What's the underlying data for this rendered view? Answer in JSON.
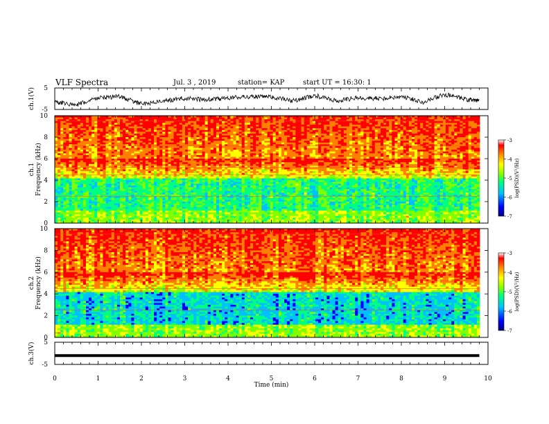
{
  "header": {
    "title": "VLF Spectra",
    "date": "Jul. 3 , 2019",
    "station": "station= KAP",
    "start_time": "start UT = 16:30: 1"
  },
  "chart_data": [
    {
      "type": "line",
      "panel": "ch.1 waveform",
      "ylabel": "ch.1(V)",
      "ylim": [
        -5,
        5
      ],
      "y_ticks": [
        "5",
        "-5"
      ],
      "x": [
        0,
        0.5,
        1,
        1.5,
        2,
        2.5,
        3,
        3.5,
        4,
        4.5,
        5,
        5.5,
        6,
        6.5,
        7,
        7.5,
        8,
        8.5,
        9,
        9.5,
        9.8
      ],
      "values": [
        -1.5,
        -3.0,
        0.5,
        1.0,
        -2.5,
        -1.0,
        0.2,
        -0.5,
        0.3,
        1.0,
        0.8,
        -1.0,
        1.5,
        -1.0,
        0.5,
        0.0,
        1.0,
        -1.5,
        2.0,
        -0.5,
        -1.0
      ],
      "color": "#000000"
    },
    {
      "type": "heatmap",
      "panel": "ch.1 spectrogram",
      "ylabel": "ch.1 Frequency (kHz)",
      "ylim": [
        0,
        10
      ],
      "y_ticks": [
        "0",
        "2",
        "4",
        "6",
        "8",
        "10"
      ],
      "colorbar_label": "log(PSD)(V²/Hz)",
      "colorbar_range": [
        -7,
        -3
      ],
      "colorbar_ticks": [
        "-3",
        "-4",
        "-5",
        "-6",
        "-7"
      ]
    },
    {
      "type": "heatmap",
      "panel": "ch.2 spectrogram",
      "ylabel": "ch.2 Frequency (kHz)",
      "ylim": [
        0,
        10
      ],
      "y_ticks": [
        "0",
        "2",
        "4",
        "6",
        "8",
        "10"
      ],
      "colorbar_label": "log(PSD)(V²/Hz)",
      "colorbar_range": [
        -7,
        -3
      ],
      "colorbar_ticks": [
        "-3",
        "-4",
        "-5",
        "-6",
        "-7"
      ]
    },
    {
      "type": "line",
      "panel": "ch.3 waveform",
      "ylabel": "ch.3(V)",
      "ylim": [
        -5,
        5
      ],
      "y_ticks": [
        "5",
        "-5"
      ],
      "x": [
        0,
        9.8
      ],
      "values": [
        -1,
        -1
      ],
      "color": "#000000"
    }
  ],
  "xaxis": {
    "label": "Time (min)",
    "xlim": [
      0,
      10
    ],
    "ticks": [
      "0",
      "1",
      "2",
      "3",
      "4",
      "5",
      "6",
      "7",
      "8",
      "9",
      "10"
    ]
  },
  "colors": {
    "colormap": [
      "#000080",
      "#0000ff",
      "#00c0ff",
      "#00ff80",
      "#80ff00",
      "#ffff00",
      "#ff8000",
      "#ff0000",
      "#ffffff"
    ]
  }
}
